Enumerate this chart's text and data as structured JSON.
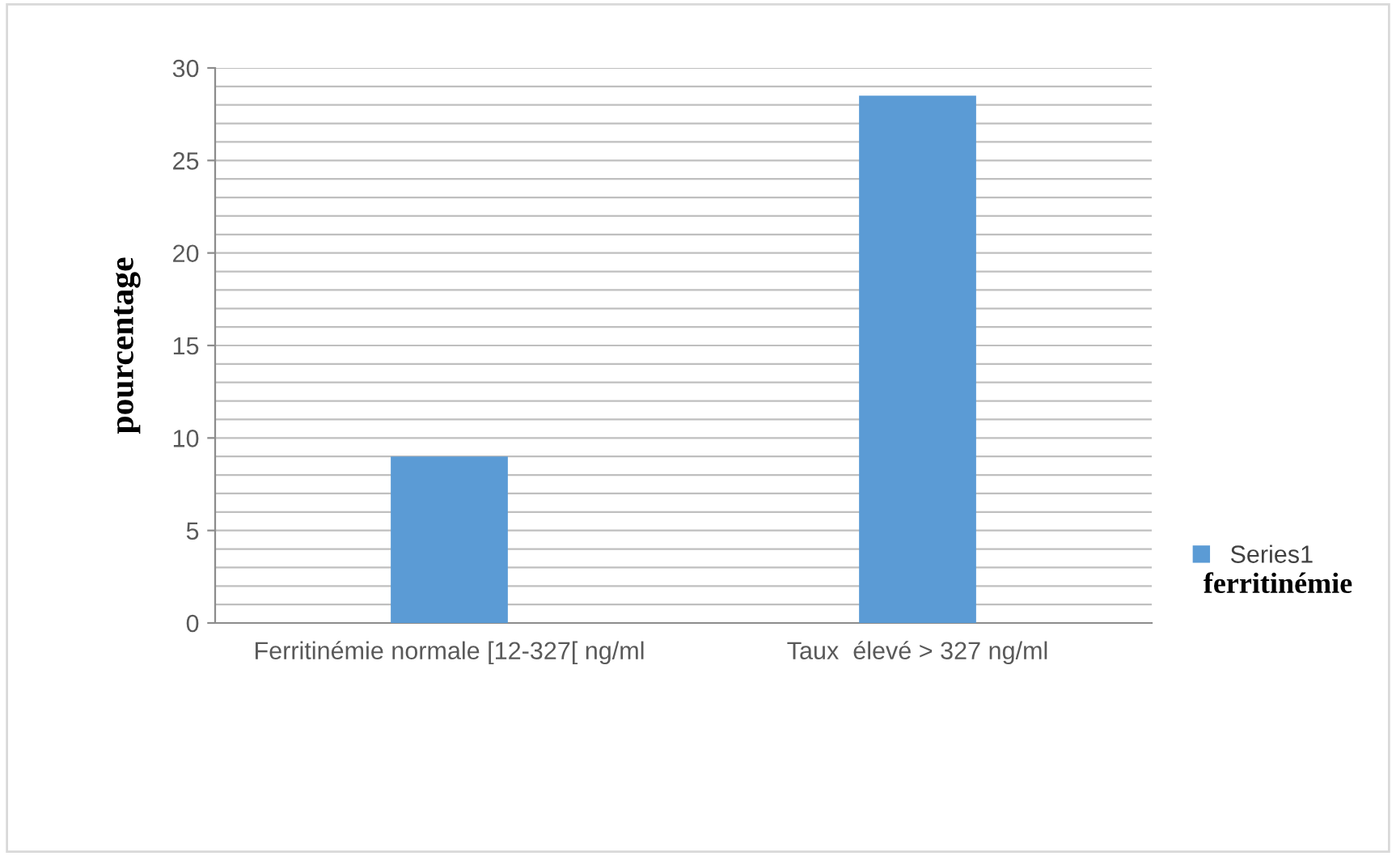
{
  "chart_data": {
    "type": "bar",
    "categories": [
      "Ferritinémie normale [12-327[ ng/ml",
      "Taux  élevé > 327 ng/ml"
    ],
    "series": [
      {
        "name": "Series1",
        "color": "#5b9bd5",
        "values": [
          9,
          28.5
        ]
      }
    ],
    "xlabel": "ferritinémie",
    "ylabel": "pourcentage",
    "ylim": [
      0,
      30
    ],
    "yticks": [
      0,
      5,
      10,
      15,
      20,
      25,
      30
    ],
    "grid": "y",
    "legend": "right"
  }
}
